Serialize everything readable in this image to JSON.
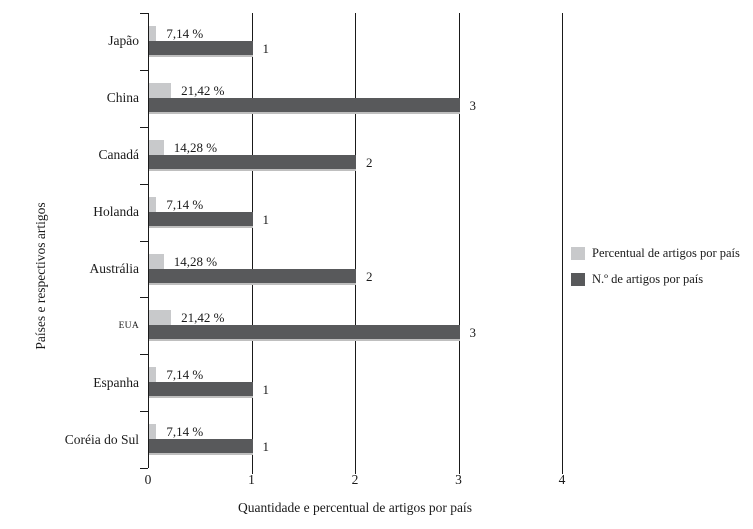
{
  "chart_data": {
    "type": "bar",
    "orientation": "horizontal",
    "title": "",
    "xlabel": "Quantidade e percentual de artigos por país",
    "ylabel": "Países e respectivos artigos",
    "xlim": [
      0,
      4
    ],
    "xticks": [
      "0",
      "1",
      "2",
      "3",
      "4"
    ],
    "grid": "vertical",
    "legend_position": "right-center",
    "background": "#ffffff",
    "categories": [
      "Japão",
      "China",
      "Canadá",
      "Holanda",
      "Austrália",
      "EUA",
      "Espanha",
      "Coréia do Sul"
    ],
    "small_font_categories": [
      "EUA"
    ],
    "series": [
      {
        "name": "Percentual de artigos por país",
        "values": [
          7.14,
          21.42,
          14.28,
          7.14,
          14.28,
          21.42,
          7.14,
          7.14
        ],
        "value_labels": [
          "7,14 %",
          "21,42 %",
          "14,28 %",
          "7,14 %",
          "14,28 %",
          "21,42 %",
          "7,14 %",
          "7,14 %"
        ],
        "axis_scale": 0.01,
        "color": "#c8c9cb"
      },
      {
        "name": "N.º de artigos por país",
        "values": [
          1,
          3,
          2,
          1,
          2,
          3,
          1,
          1
        ],
        "value_labels": [
          "1",
          "3",
          "2",
          "1",
          "2",
          "3",
          "1",
          "1"
        ],
        "axis_scale": 1,
        "color": "#58595b"
      }
    ]
  }
}
